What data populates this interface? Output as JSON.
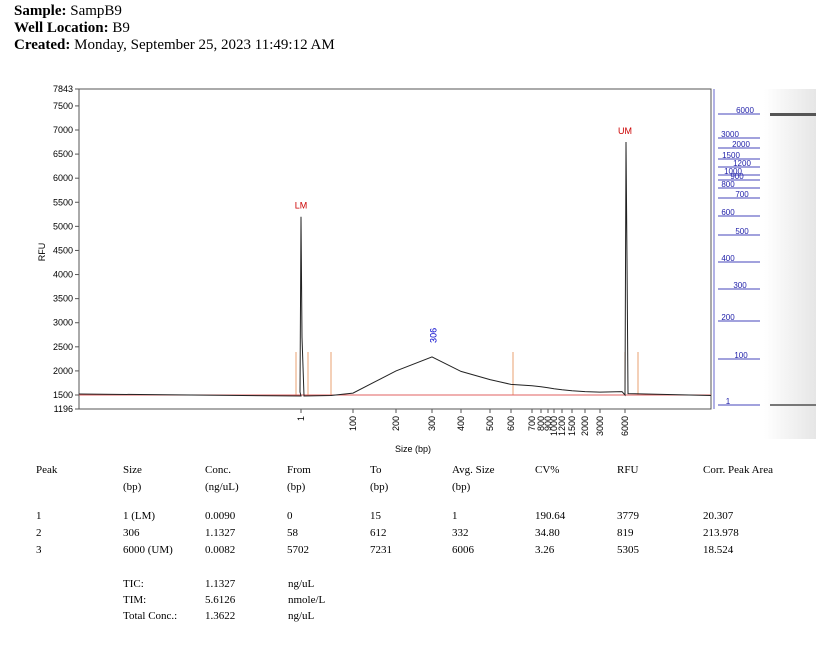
{
  "header": {
    "sample_label": "Sample:",
    "sample_value": "SampB9",
    "well_label": "Well Location:",
    "well_value": "B9",
    "created_label": "Created:",
    "created_value": "Monday, September 25, 2023 11:49:12 AM"
  },
  "chart_data": {
    "type": "line",
    "title": "",
    "xlabel": "Size (bp)",
    "ylabel": "RFU",
    "ylim": [
      1196,
      7843
    ],
    "y_ticks": [
      1500,
      2000,
      2500,
      3000,
      3500,
      4000,
      4500,
      5000,
      5500,
      6000,
      6500,
      7000,
      7500
    ],
    "y_extra_labels": [
      1196,
      7843
    ],
    "x_tick_labels": [
      "1",
      "100",
      "200",
      "300",
      "400",
      "500",
      "600",
      "700",
      "800",
      "900",
      "1000",
      "1200",
      "1500",
      "2000",
      "3000",
      "6000"
    ],
    "x_positions": [
      1,
      10,
      58,
      100,
      200,
      300,
      400,
      500,
      600,
      700,
      800,
      900,
      1000,
      1200,
      1500,
      2000,
      3000,
      6000,
      7231
    ],
    "y_values": [
      1500,
      1480,
      1490,
      1540,
      2000,
      2290,
      1990,
      1820,
      1720,
      1690,
      1670,
      1650,
      1630,
      1610,
      1590,
      1570,
      1560,
      1540,
      1500
    ],
    "peak_labels": [
      {
        "text": "LM",
        "size": 1,
        "rfu": 5200,
        "color": "#cc0000"
      },
      {
        "text": "306",
        "size": 306,
        "rfu": 2290,
        "color": "#0000cc"
      },
      {
        "text": "UM",
        "size": 6000,
        "rfu": 6750,
        "color": "#cc0000"
      }
    ],
    "ladder_labels": [
      "6000",
      "3000",
      "2000",
      "1200",
      "1500",
      "1000",
      "900",
      "800",
      "700",
      "600",
      "500",
      "400",
      "300",
      "200",
      "100",
      "1"
    ],
    "grid": false
  },
  "table": {
    "headers": [
      "Peak",
      "Size",
      "Conc.",
      "From",
      "To",
      "Avg. Size",
      "CV%",
      "RFU",
      "Corr. Peak Area"
    ],
    "units": [
      "",
      "(bp)",
      "(ng/uL)",
      "(bp)",
      "(bp)",
      "(bp)",
      "",
      "",
      ""
    ],
    "rows": [
      [
        "1",
        "1 (LM)",
        "0.0090",
        "0",
        "15",
        "1",
        "190.64",
        "3779",
        "20.307"
      ],
      [
        "2",
        "306",
        "1.1327",
        "58",
        "612",
        "332",
        "34.80",
        "819",
        "213.978"
      ],
      [
        "3",
        "6000 (UM)",
        "0.0082",
        "5702",
        "7231",
        "6006",
        "3.26",
        "5305",
        "18.524"
      ]
    ]
  },
  "summary": [
    {
      "label": "TIC:",
      "value": "1.1327",
      "unit": "ng/uL"
    },
    {
      "label": "TIM:",
      "value": "5.6126",
      "unit": "nmole/L"
    },
    {
      "label": "Total Conc.:",
      "value": "1.3622",
      "unit": "ng/uL"
    }
  ]
}
